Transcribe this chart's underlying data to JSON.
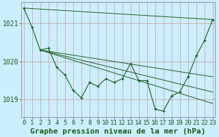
{
  "title": "Graphe pression niveau de la mer (hPa)",
  "bg_color": "#cceeff",
  "line_color": "#1a5c1a",
  "grid_color": "#cc9999",
  "hours": [
    0,
    1,
    2,
    3,
    4,
    5,
    6,
    7,
    8,
    9,
    10,
    11,
    12,
    13,
    14,
    15,
    16,
    17,
    18,
    19,
    20,
    21,
    22,
    23
  ],
  "pressure": [
    1021.4,
    1020.9,
    1020.3,
    1020.35,
    1019.85,
    1019.65,
    1019.25,
    1019.05,
    1019.45,
    1019.35,
    1019.55,
    1019.45,
    1019.55,
    1019.95,
    1019.5,
    1019.5,
    1018.75,
    1018.7,
    1019.1,
    1019.2,
    1019.6,
    1020.15,
    1020.55,
    1021.1
  ],
  "ylim": [
    1018.55,
    1021.55
  ],
  "yticks": [
    1019,
    1020,
    1021
  ],
  "trend_lines": [
    [
      0,
      1021.4,
      23,
      1021.1
    ],
    [
      2,
      1020.3,
      23,
      1019.6
    ],
    [
      2,
      1020.3,
      23,
      1019.2
    ],
    [
      2,
      1020.3,
      23,
      1018.9
    ]
  ],
  "title_fontsize": 8,
  "tick_fontsize": 6.5
}
